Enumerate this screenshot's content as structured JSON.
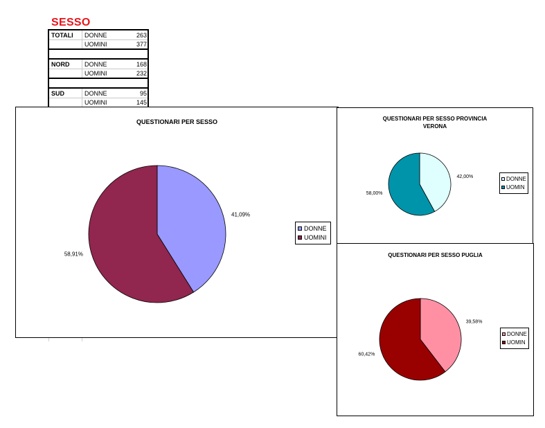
{
  "heading": "SESSO",
  "table": [
    {
      "region": "TOTALI",
      "rows": [
        {
          "label": "DONNE",
          "value": "263"
        },
        {
          "label": "UOMINI",
          "value": "377"
        }
      ]
    },
    {
      "region": "NORD",
      "rows": [
        {
          "label": "DONNE",
          "value": "168"
        },
        {
          "label": "UOMINI",
          "value": "232"
        }
      ]
    },
    {
      "region": "SUD",
      "rows": [
        {
          "label": "DONNE",
          "value": "95"
        },
        {
          "label": "UOMINI",
          "value": "145"
        }
      ]
    }
  ],
  "chart_data": [
    {
      "type": "pie",
      "title": "QUESTIONARI PER SESSO",
      "categories": [
        "DONNE",
        "UOMINI"
      ],
      "values": [
        41.09,
        58.91
      ],
      "labels": [
        "41,09%",
        "58,91%"
      ],
      "colors": [
        "#9999ff",
        "#91264f"
      ],
      "legend": "right"
    },
    {
      "type": "pie",
      "title": "QUESTIONARI PER SESSO PROVINCIA VERONA",
      "title_lines": [
        "QUESTIONARI PER SESSO PROVINCIA",
        "VERONA"
      ],
      "categories": [
        "DONNE",
        "UOMIN"
      ],
      "values": [
        42.0,
        58.0
      ],
      "labels": [
        "42,00%",
        "58,00%"
      ],
      "colors": [
        "#dfffff",
        "#0094aa"
      ],
      "legend": "right"
    },
    {
      "type": "pie",
      "title": "QUESTIONARI PER SESSO PUGLIA",
      "categories": [
        "DONNE",
        "UOMIN"
      ],
      "values": [
        39.58,
        60.42
      ],
      "labels": [
        "39,58%",
        "60,42%"
      ],
      "colors": [
        "#ff90a4",
        "#990000"
      ],
      "legend": "right"
    }
  ]
}
